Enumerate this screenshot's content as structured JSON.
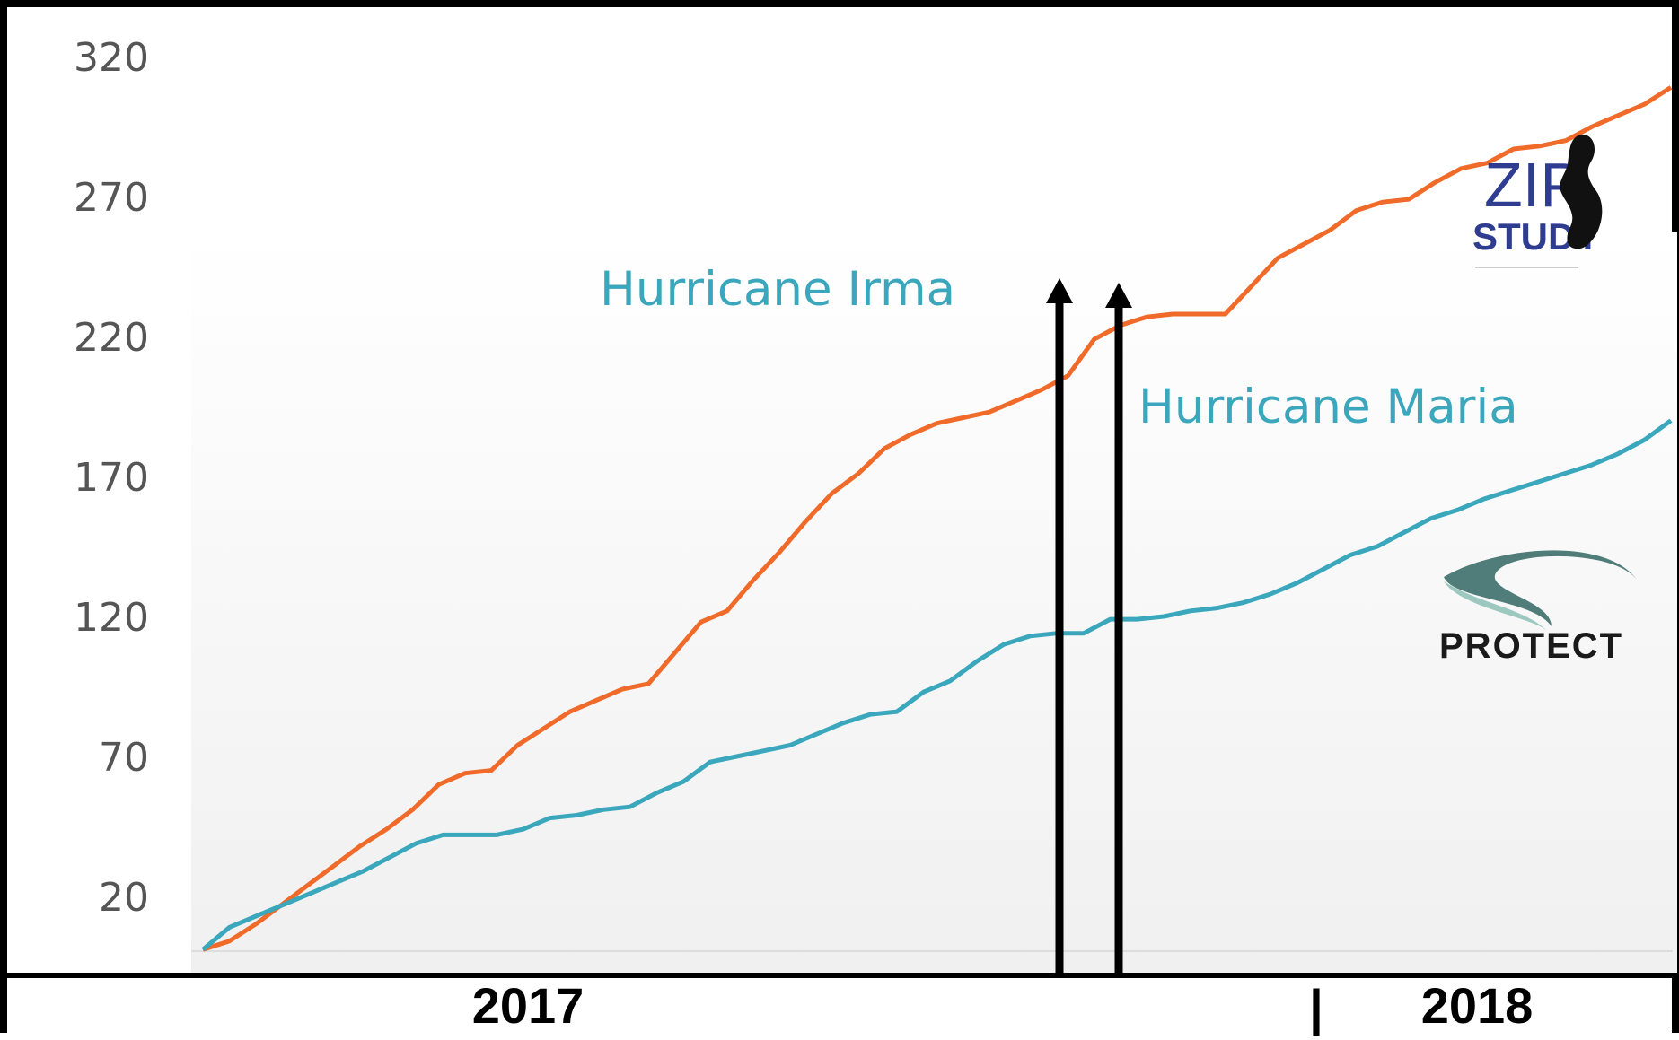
{
  "chart_data": {
    "type": "line",
    "ylim": [
      0,
      330
    ],
    "yticks": [
      "320",
      "270",
      "220",
      "170",
      "120",
      "70",
      "20"
    ],
    "ytick_values": [
      320,
      270,
      220,
      170,
      120,
      70,
      20
    ],
    "colors": {
      "orange": "#f06a2a",
      "teal": "#3aa7bc"
    },
    "series": [
      {
        "color": "#f06a2a",
        "values": [
          1,
          4,
          10,
          17,
          24,
          31,
          38,
          44,
          51,
          60,
          64,
          65,
          74,
          80,
          86,
          90,
          94,
          96,
          107,
          118,
          122,
          133,
          143,
          154,
          164,
          171,
          180,
          185,
          189,
          191,
          193,
          197,
          201,
          206,
          219,
          224,
          227,
          228,
          228,
          228,
          238,
          248,
          253,
          258,
          265,
          268,
          269,
          275,
          280,
          282,
          287,
          288,
          290,
          295,
          299,
          303,
          309
        ]
      },
      {
        "color": "#3aa7bc",
        "values": [
          1,
          9,
          13,
          17,
          21,
          25,
          29,
          34,
          39,
          42,
          42,
          42,
          44,
          48,
          49,
          51,
          52,
          57,
          61,
          68,
          70,
          72,
          74,
          78,
          82,
          85,
          86,
          93,
          97,
          104,
          110,
          113,
          114,
          114,
          119,
          119,
          120,
          122,
          123,
          125,
          128,
          132,
          137,
          142,
          145,
          150,
          155,
          158,
          162,
          165,
          168,
          171,
          174,
          178,
          183,
          190
        ]
      }
    ],
    "annotations": [
      {
        "text": "Hurricane Irma",
        "arrow_index": 0
      },
      {
        "text": "Hurricane Maria",
        "arrow_index": 1
      }
    ],
    "x_labels": [
      "2017",
      "|",
      "2018"
    ]
  },
  "logos": {
    "zip_study": {
      "line1": "ZIP",
      "line2": "STUDY"
    },
    "protect": {
      "name": "PROTECT"
    }
  }
}
